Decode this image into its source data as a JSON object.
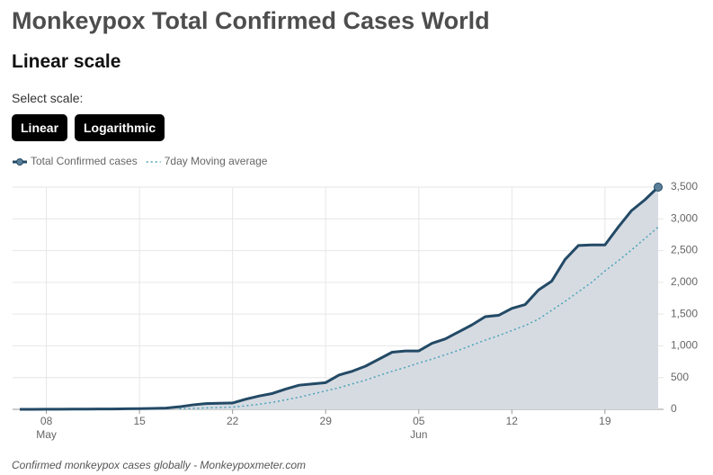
{
  "header": {
    "title": "Monkeypox Total Confirmed Cases World",
    "subtitle": "Linear scale",
    "select_label": "Select scale:",
    "buttons": [
      "Linear",
      "Logarithmic"
    ]
  },
  "chart_data": {
    "type": "line",
    "x": [
      "05-06",
      "05-07",
      "05-08",
      "05-09",
      "05-10",
      "05-11",
      "05-12",
      "05-13",
      "05-14",
      "05-15",
      "05-16",
      "05-17",
      "05-18",
      "05-19",
      "05-20",
      "05-21",
      "05-22",
      "05-23",
      "05-24",
      "05-25",
      "05-26",
      "05-27",
      "05-28",
      "05-29",
      "05-30",
      "05-31",
      "06-01",
      "06-02",
      "06-03",
      "06-04",
      "06-05",
      "06-06",
      "06-07",
      "06-08",
      "06-09",
      "06-10",
      "06-11",
      "06-12",
      "06-13",
      "06-14",
      "06-15",
      "06-16",
      "06-17",
      "06-18",
      "06-19",
      "06-20",
      "06-21",
      "06-22",
      "06-23"
    ],
    "series": [
      {
        "name": "Total Confirmed cases",
        "color": "#234a66",
        "fill": "#d6dbe2",
        "values": [
          0,
          0,
          1,
          2,
          3,
          4,
          5,
          6,
          8,
          10,
          15,
          20,
          40,
          70,
          90,
          95,
          100,
          160,
          210,
          250,
          320,
          380,
          400,
          420,
          540,
          600,
          680,
          790,
          900,
          920,
          920,
          1040,
          1110,
          1220,
          1330,
          1460,
          1480,
          1590,
          1650,
          1880,
          2020,
          2360,
          2580,
          2590,
          2590,
          2870,
          3130,
          3300,
          3500
        ]
      },
      {
        "name": "7day Moving average",
        "color": "#4ba3b8",
        "values": [
          null,
          null,
          null,
          null,
          null,
          null,
          null,
          null,
          null,
          null,
          null,
          null,
          10,
          15,
          22,
          28,
          35,
          55,
          80,
          110,
          150,
          190,
          240,
          290,
          340,
          400,
          460,
          530,
          600,
          660,
          730,
          790,
          860,
          930,
          1010,
          1090,
          1160,
          1240,
          1320,
          1420,
          1560,
          1700,
          1850,
          2000,
          2180,
          2340,
          2510,
          2690,
          2870
        ]
      }
    ],
    "ylim": [
      0,
      3500
    ],
    "yticks": [
      0,
      {
        "value": 500,
        "label": "500"
      },
      {
        "value": 1000,
        "label": "1,000"
      },
      {
        "value": 1500,
        "label": "1,500"
      },
      {
        "value": 2000,
        "label": "2,000"
      },
      {
        "value": 2500,
        "label": "2,500"
      },
      {
        "value": 3000,
        "label": "3,000"
      },
      {
        "value": 3500,
        "label": "3,500"
      }
    ],
    "xticks": [
      {
        "value": "05-08",
        "label": "08"
      },
      {
        "value": "05-15",
        "label": "15"
      },
      {
        "value": "05-22",
        "label": "22"
      },
      {
        "value": "05-29",
        "label": "29"
      },
      {
        "value": "06-05",
        "label": "05"
      },
      {
        "value": "06-12",
        "label": "12"
      },
      {
        "value": "06-19",
        "label": "19"
      }
    ],
    "month_labels": [
      {
        "value": "05-08",
        "label": "May"
      },
      {
        "value": "06-05",
        "label": "Jun"
      }
    ],
    "grid": true,
    "note": "Confirmed monkeypox cases globally - Monkeypoxmeter.com"
  }
}
